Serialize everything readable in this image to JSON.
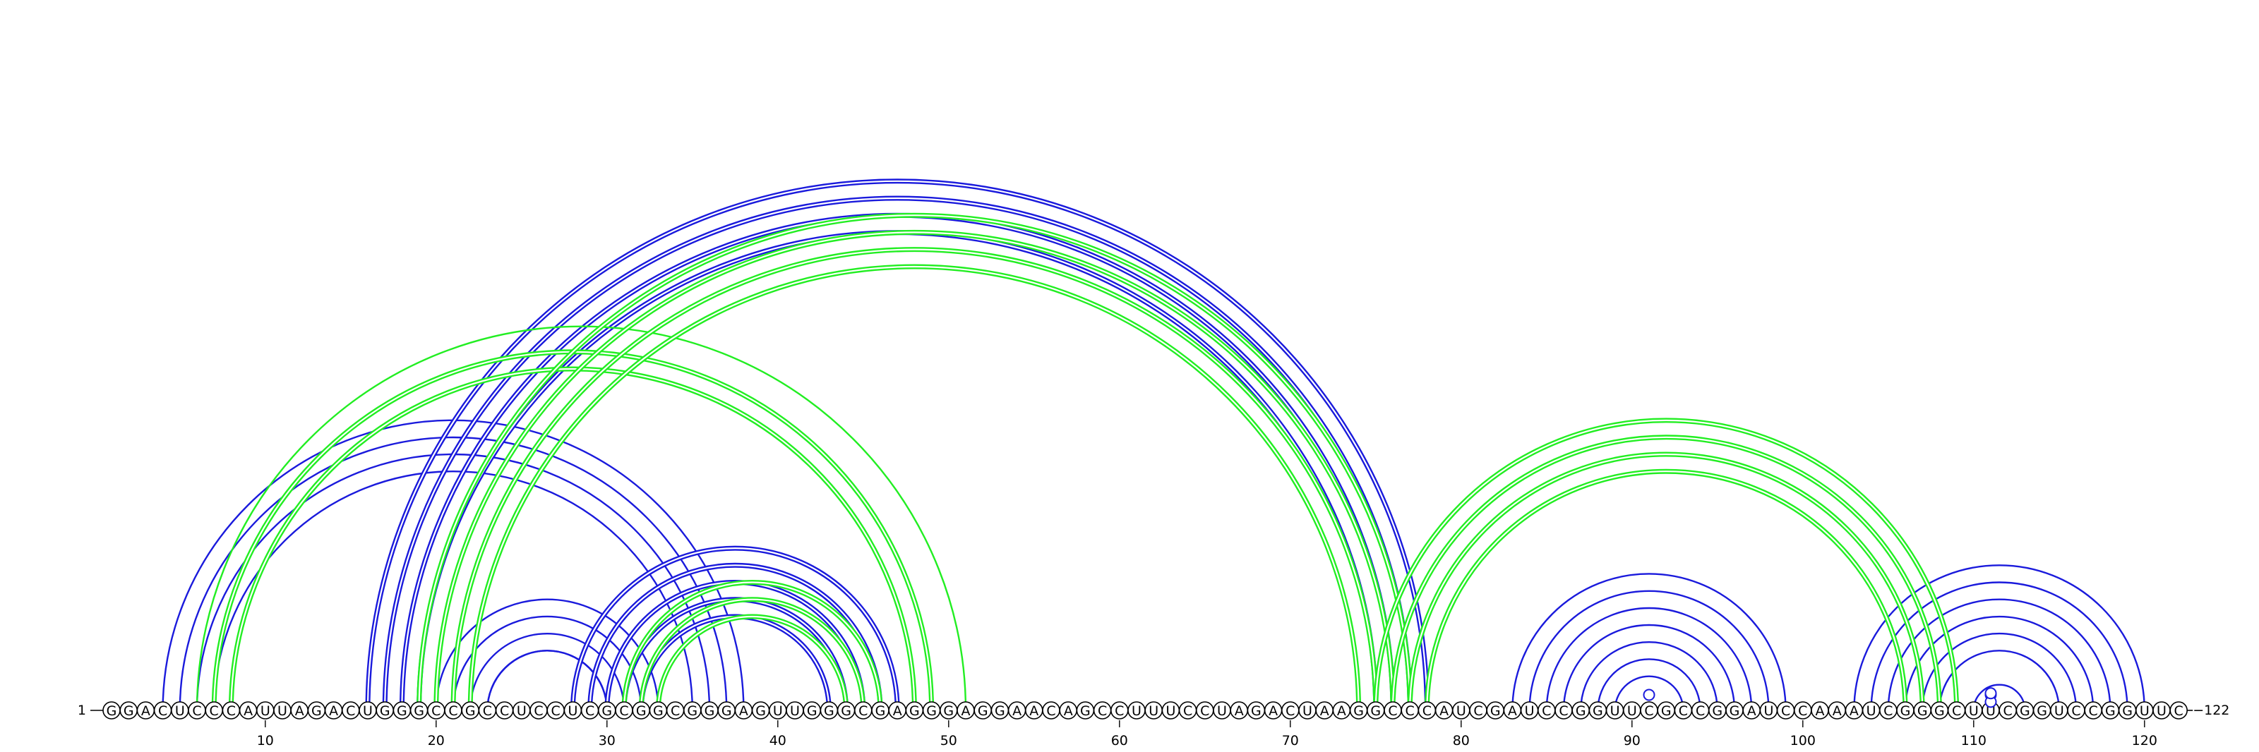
{
  "sequence": "GGACUCCCAUUAGACUGGGCCGCCUCCUCGCGGCGGGAGUUGGGCGAGGGAGGAACAGCCUUUCCUAGACUAAGGCCCAUCGAUCCGGUUCGCCGGAUCCAAAUCGGGCUUCGGUCCGGUUC",
  "start_label": "1",
  "end_label": "122",
  "ticks": [
    10,
    20,
    30,
    40,
    50,
    60,
    70,
    80,
    90,
    100,
    110,
    120
  ],
  "colors": {
    "blue": "#1a1adc",
    "green": "#22ee22"
  },
  "helices": [
    {
      "color": "blue",
      "i": 4,
      "j": 38,
      "n": 4,
      "double": false
    },
    {
      "color": "blue",
      "i": 16,
      "j": 78,
      "n": 4,
      "double": true
    },
    {
      "color": "blue",
      "i": 20,
      "j": 33,
      "n": 4,
      "double": false
    },
    {
      "color": "blue",
      "i": 23,
      "j": 30,
      "n": 1,
      "double": false
    },
    {
      "color": "blue",
      "i": 28,
      "j": 47,
      "n": 5,
      "double": true
    },
    {
      "color": "blue",
      "i": 83,
      "j": 99,
      "n": 5,
      "double": false
    },
    {
      "color": "blue",
      "i": 88,
      "j": 94,
      "n": 2,
      "double": false
    },
    {
      "color": "blue",
      "i": 103,
      "j": 120,
      "n": 4,
      "double": false
    },
    {
      "color": "blue",
      "i": 107,
      "j": 116,
      "n": 2,
      "double": false
    },
    {
      "color": "blue",
      "i": 110,
      "j": 113,
      "n": 1,
      "double": false
    },
    {
      "color": "green",
      "i": 6,
      "j": 51,
      "n": 1,
      "double": false
    },
    {
      "color": "green",
      "i": 7,
      "j": 49,
      "n": 2,
      "double": true
    },
    {
      "color": "green",
      "i": 19,
      "j": 77,
      "n": 4,
      "double": true
    },
    {
      "color": "green",
      "i": 31,
      "j": 46,
      "n": 3,
      "double": true
    },
    {
      "color": "green",
      "i": 75,
      "j": 109,
      "n": 4,
      "double": true
    }
  ],
  "markers": [
    {
      "i": 91,
      "j": 91
    },
    {
      "i": 111,
      "j": 111
    },
    {
      "i": 111,
      "j": 112
    },
    {
      "i": 111,
      "j": 113
    }
  ]
}
